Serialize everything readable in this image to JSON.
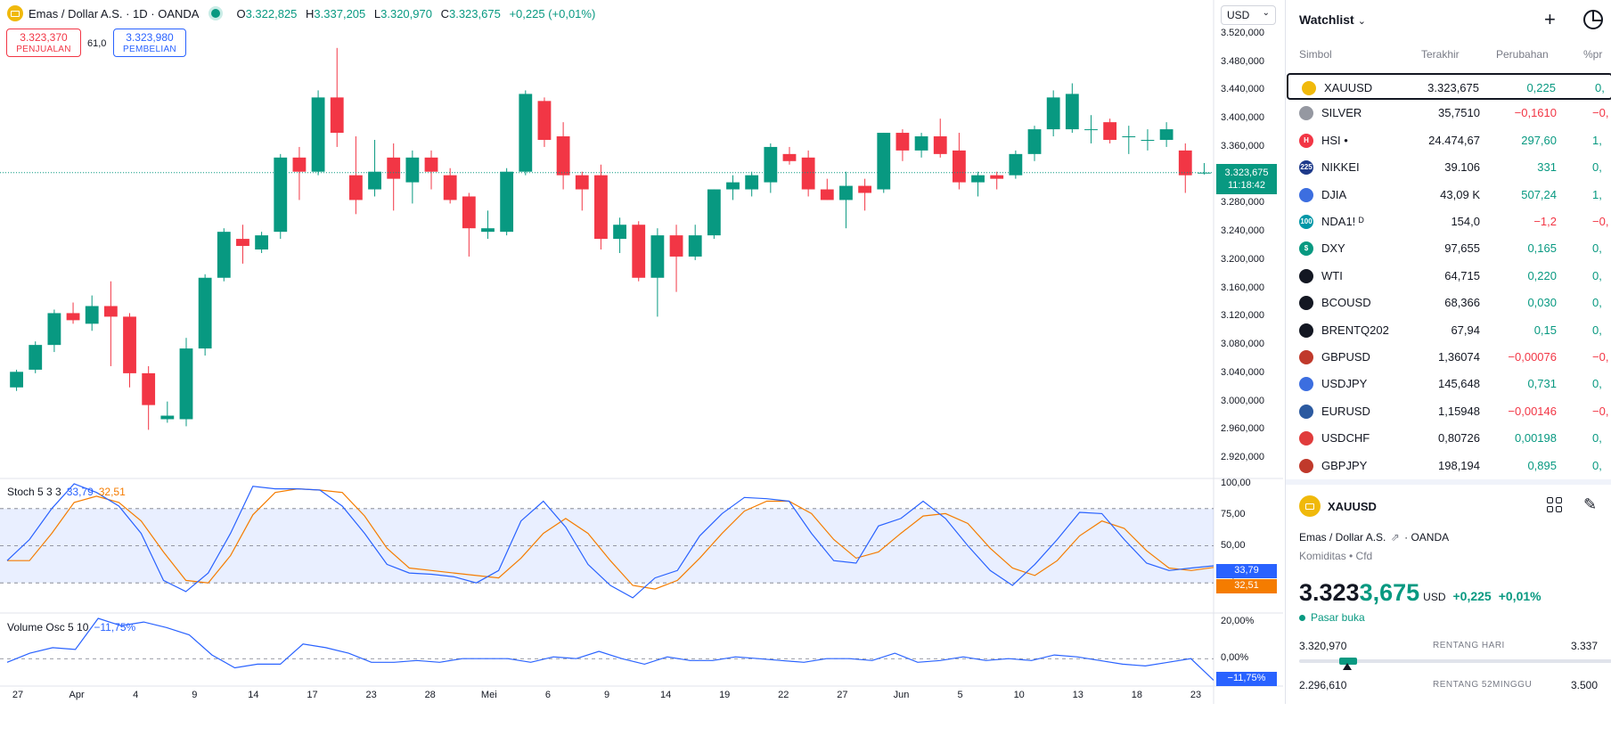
{
  "chart": {
    "symbol_title": "Emas / Dollar A.S. · 1D · OANDA",
    "ohlc": {
      "o_label": "O",
      "o": "3.322,825",
      "h_label": "H",
      "h": "3.337,205",
      "l_label": "L",
      "l": "3.320,970",
      "c_label": "C",
      "c": "3.323,675",
      "change": "+0,225 (+0,01%)"
    },
    "sell": {
      "price": "3.323,370",
      "label": "PENJUALAN"
    },
    "buy": {
      "price": "3.323,980",
      "label": "PEMBELIAN"
    },
    "spread": "61,0",
    "currency": "USD",
    "price_axis": [
      "3.520,000",
      "3.480,000",
      "3.440,000",
      "3.400,000",
      "3.360,000",
      "3.320,000",
      "3.280,000",
      "3.240,000",
      "3.200,000",
      "3.160,000",
      "3.120,000",
      "3.080,000",
      "3.040,000",
      "3.000,000",
      "2.960,000",
      "2.920,000"
    ],
    "last_price_tag": "3.323,675",
    "countdown": "11:18:42",
    "colors": {
      "up": "#089981",
      "down": "#f23645",
      "stoch_k": "#2962ff",
      "stoch_d": "#f57c00"
    }
  },
  "stoch": {
    "title": "Stoch 5 3 3",
    "k_value": "33,79",
    "d_value": "32,51",
    "axis": [
      "100,00",
      "75,00",
      "50,00",
      "25,00"
    ]
  },
  "volosc": {
    "title": "Volume Osc 5 10",
    "value": "−11,75%",
    "axis": [
      "20,00%",
      "0,00%"
    ],
    "tag": "−11,75%"
  },
  "time_axis": [
    "27",
    "Apr",
    "4",
    "9",
    "14",
    "17",
    "23",
    "28",
    "Mei",
    "6",
    "9",
    "14",
    "19",
    "22",
    "27",
    "Jun",
    "5",
    "10",
    "13",
    "18",
    "23"
  ],
  "chart_data": {
    "type": "candlestick",
    "title": "Emas / Dollar A.S. · 1D · OANDA",
    "ylim": [
      2900,
      3530
    ],
    "candles": [
      [
        3020,
        3045,
        3015,
        3042
      ],
      [
        3045,
        3085,
        3040,
        3080
      ],
      [
        3080,
        3130,
        3070,
        3125
      ],
      [
        3125,
        3140,
        3110,
        3115
      ],
      [
        3110,
        3150,
        3100,
        3135
      ],
      [
        3135,
        3170,
        3050,
        3120
      ],
      [
        3120,
        3125,
        3020,
        3040
      ],
      [
        3040,
        3050,
        2960,
        2995
      ],
      [
        2975,
        3000,
        2970,
        2980
      ],
      [
        2975,
        3090,
        2965,
        3075
      ],
      [
        3075,
        3180,
        3065,
        3175
      ],
      [
        3175,
        3245,
        3170,
        3240
      ],
      [
        3230,
        3250,
        3195,
        3220
      ],
      [
        3215,
        3240,
        3210,
        3235
      ],
      [
        3240,
        3350,
        3230,
        3345
      ],
      [
        3345,
        3360,
        3285,
        3325
      ],
      [
        3325,
        3440,
        3320,
        3430
      ],
      [
        3430,
        3500,
        3360,
        3380
      ],
      [
        3320,
        3375,
        3265,
        3285
      ],
      [
        3300,
        3370,
        3290,
        3325
      ],
      [
        3345,
        3365,
        3270,
        3315
      ],
      [
        3310,
        3355,
        3280,
        3345
      ],
      [
        3345,
        3355,
        3300,
        3325
      ],
      [
        3320,
        3330,
        3280,
        3285
      ],
      [
        3290,
        3295,
        3205,
        3245
      ],
      [
        3240,
        3270,
        3230,
        3245
      ],
      [
        3240,
        3330,
        3235,
        3325
      ],
      [
        3325,
        3440,
        3320,
        3435
      ],
      [
        3425,
        3430,
        3360,
        3370
      ],
      [
        3375,
        3395,
        3300,
        3320
      ],
      [
        3320,
        3325,
        3270,
        3300
      ],
      [
        3320,
        3335,
        3215,
        3230
      ],
      [
        3230,
        3260,
        3210,
        3250
      ],
      [
        3250,
        3255,
        3170,
        3175
      ],
      [
        3175,
        3245,
        3120,
        3235
      ],
      [
        3235,
        3250,
        3155,
        3205
      ],
      [
        3205,
        3250,
        3200,
        3235
      ],
      [
        3235,
        3300,
        3230,
        3300
      ],
      [
        3300,
        3320,
        3285,
        3310
      ],
      [
        3300,
        3325,
        3290,
        3320
      ],
      [
        3310,
        3365,
        3295,
        3360
      ],
      [
        3350,
        3360,
        3335,
        3340
      ],
      [
        3345,
        3355,
        3290,
        3300
      ],
      [
        3300,
        3315,
        3285,
        3285
      ],
      [
        3285,
        3325,
        3245,
        3305
      ],
      [
        3305,
        3315,
        3270,
        3295
      ],
      [
        3300,
        3380,
        3295,
        3380
      ],
      [
        3380,
        3385,
        3340,
        3355
      ],
      [
        3355,
        3380,
        3345,
        3375
      ],
      [
        3375,
        3400,
        3345,
        3350
      ],
      [
        3355,
        3380,
        3300,
        3310
      ],
      [
        3310,
        3325,
        3290,
        3320
      ],
      [
        3320,
        3325,
        3300,
        3315
      ],
      [
        3320,
        3355,
        3315,
        3350
      ],
      [
        3350,
        3390,
        3340,
        3385
      ],
      [
        3385,
        3440,
        3375,
        3430
      ],
      [
        3385,
        3450,
        3380,
        3435
      ],
      [
        3385,
        3405,
        3365,
        3385
      ],
      [
        3395,
        3400,
        3365,
        3370
      ],
      [
        3375,
        3390,
        3350,
        3375
      ],
      [
        3370,
        3385,
        3355,
        3370
      ],
      [
        3370,
        3395,
        3360,
        3385
      ],
      [
        3355,
        3365,
        3295,
        3320
      ],
      [
        3322.825,
        3337.205,
        3320.97,
        3323.675
      ]
    ],
    "stoch_k": [
      38,
      55,
      80,
      100,
      93,
      82,
      60,
      22,
      13,
      28,
      60,
      98,
      96,
      96,
      95,
      82,
      60,
      35,
      28,
      27,
      25,
      20,
      30,
      70,
      86,
      65,
      35,
      18,
      8,
      24,
      30,
      58,
      76,
      89,
      88,
      86,
      60,
      38,
      36,
      66,
      72,
      86,
      72,
      50,
      30,
      18,
      35,
      55,
      77,
      76,
      55,
      36,
      30,
      32,
      33.79
    ],
    "stoch_d": [
      38,
      38,
      60,
      85,
      90,
      85,
      70,
      45,
      22,
      20,
      42,
      75,
      93,
      96,
      95,
      93,
      74,
      48,
      32,
      30,
      28,
      26,
      24,
      40,
      60,
      72,
      60,
      38,
      18,
      15,
      22,
      40,
      60,
      78,
      86,
      86,
      76,
      55,
      40,
      45,
      60,
      74,
      76,
      68,
      48,
      32,
      26,
      38,
      58,
      70,
      64,
      46,
      32,
      30,
      32.51
    ],
    "stoch_ylim": [
      0,
      100
    ],
    "vol_osc": [
      -2,
      3,
      6,
      5,
      22,
      18,
      20,
      17,
      13,
      2,
      -5,
      -3,
      -3,
      8,
      6,
      3,
      -2,
      -2,
      -1,
      -2,
      0,
      0,
      0,
      -2,
      1,
      0,
      4,
      0,
      -3,
      1,
      -1,
      -1,
      1,
      0,
      -1,
      -2,
      0,
      0,
      -1,
      3,
      -2,
      -1,
      1,
      -1,
      0,
      -1,
      2,
      1,
      -1,
      -3,
      -4,
      -2,
      0,
      -11.75
    ],
    "vol_ylim": [
      -14,
      22
    ]
  },
  "watchlist": {
    "title": "Watchlist",
    "columns": {
      "symbol": "Simbol",
      "last": "Terakhir",
      "change": "Perubahan",
      "pct": "%pr"
    },
    "rows": [
      {
        "sym": "XAUUSD",
        "last": "3.323,675",
        "chg": "0,225",
        "pct": "0,",
        "dir": "up",
        "icon": "gold-icon",
        "icon_color": "#f0b90b",
        "icon_text": ""
      },
      {
        "sym": "SILVER",
        "last": "35,7510",
        "chg": "−0,1610",
        "pct": "−0,",
        "dir": "dn",
        "icon": "silver-icon",
        "icon_color": "#9598a1",
        "icon_text": ""
      },
      {
        "sym": "HSI •",
        "last": "24.474,67",
        "chg": "297,60",
        "pct": "1,",
        "dir": "up",
        "icon": "hsi-icon",
        "icon_color": "#f23645",
        "icon_text": "H"
      },
      {
        "sym": "NIKKEI",
        "last": "39.106",
        "chg": "331",
        "pct": "0,",
        "dir": "up",
        "icon": "nikkei-icon",
        "icon_color": "#1e3a8a",
        "icon_text": "225"
      },
      {
        "sym": "DJIA",
        "last": "43,09 K",
        "chg": "507,24",
        "pct": "1,",
        "dir": "up",
        "icon": "us-flag-icon",
        "icon_color": "#3c6ee0",
        "icon_text": ""
      },
      {
        "sym": "NDA1! ᴰ",
        "last": "154,0",
        "chg": "−1,2",
        "pct": "−0,",
        "dir": "dn",
        "icon": "nasdaq-icon",
        "icon_color": "#0097a7",
        "icon_text": "100"
      },
      {
        "sym": "DXY",
        "last": "97,655",
        "chg": "0,165",
        "pct": "0,",
        "dir": "up",
        "icon": "dollar-icon",
        "icon_color": "#089981",
        "icon_text": "$"
      },
      {
        "sym": "WTI",
        "last": "64,715",
        "chg": "0,220",
        "pct": "0,",
        "dir": "up",
        "icon": "oil-drop-icon",
        "icon_color": "#131722",
        "icon_text": ""
      },
      {
        "sym": "BCOUSD",
        "last": "68,366",
        "chg": "0,030",
        "pct": "0,",
        "dir": "up",
        "icon": "oil-drop-icon",
        "icon_color": "#131722",
        "icon_text": ""
      },
      {
        "sym": "BRENTQ202",
        "last": "67,94",
        "chg": "0,15",
        "pct": "0,",
        "dir": "up",
        "icon": "oil-drop-icon",
        "icon_color": "#131722",
        "icon_text": ""
      },
      {
        "sym": "GBPUSD",
        "last": "1,36074",
        "chg": "−0,00076",
        "pct": "−0,",
        "dir": "dn",
        "icon": "gbp-usd-flag-icon",
        "icon_color": "#c0392b",
        "icon_text": ""
      },
      {
        "sym": "USDJPY",
        "last": "145,648",
        "chg": "0,731",
        "pct": "0,",
        "dir": "up",
        "icon": "usd-jpy-flag-icon",
        "icon_color": "#3c6ee0",
        "icon_text": ""
      },
      {
        "sym": "EURUSD",
        "last": "1,15948",
        "chg": "−0,00146",
        "pct": "−0,",
        "dir": "dn",
        "icon": "eur-usd-flag-icon",
        "icon_color": "#2c5aa0",
        "icon_text": ""
      },
      {
        "sym": "USDCHF",
        "last": "0,80726",
        "chg": "0,00198",
        "pct": "0,",
        "dir": "up",
        "icon": "usd-chf-flag-icon",
        "icon_color": "#e03c3c",
        "icon_text": ""
      },
      {
        "sym": "GBPJPY",
        "last": "198,194",
        "chg": "0,895",
        "pct": "0,",
        "dir": "up",
        "icon": "gbp-jpy-flag-icon",
        "icon_color": "#c0392b",
        "icon_text": ""
      }
    ]
  },
  "details": {
    "symbol": "XAUUSD",
    "name": "Emas / Dollar A.S.",
    "exchange": "· OANDA",
    "type": "Komiditas • Cfd",
    "price_main": "3.323",
    "price_tail": "3,675",
    "currency": "USD",
    "change": "+0,225",
    "change_pct": "+0,01%",
    "status": "Pasar buka",
    "day_range": {
      "low": "3.320,970",
      "label": "RENTANG HARI",
      "high": "3.337"
    },
    "year_range": {
      "low": "2.296,610",
      "label": "RENTANG 52MINGGU",
      "high": "3.500"
    }
  }
}
